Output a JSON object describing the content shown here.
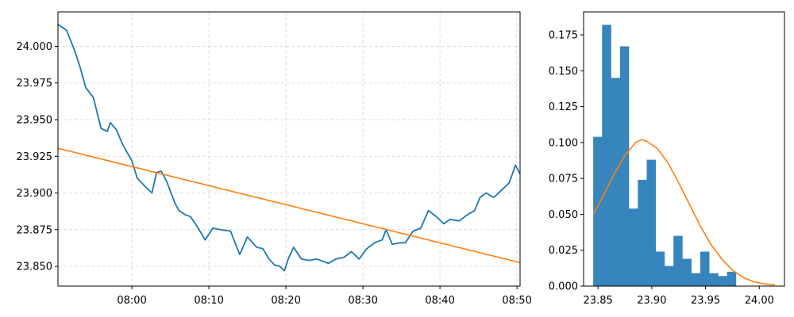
{
  "chart_data": [
    {
      "type": "line",
      "x_ticks": [
        "08:00",
        "08:10",
        "08:20",
        "08:30",
        "08:40",
        "08:50"
      ],
      "x_tick_minutes": [
        0,
        10,
        20,
        30,
        40,
        50
      ],
      "xlim_minutes": [
        -9.6,
        50.4
      ],
      "y_ticks": [
        "23.850",
        "23.875",
        "23.900",
        "23.925",
        "23.950",
        "23.975",
        "24.000"
      ],
      "y_tick_values": [
        23.85,
        23.875,
        23.9,
        23.925,
        23.95,
        23.975,
        24.0
      ],
      "ylim": [
        23.8365,
        24.0235
      ],
      "grid": true,
      "series": [
        {
          "color": "#1f77b4",
          "x_minutes": [
            -9.6,
            -8.5,
            -7.5,
            -6.8,
            -6.0,
            -5.0,
            -4.0,
            -3.2,
            -2.8,
            -2.0,
            -1.2,
            0.0,
            0.7,
            1.8,
            2.6,
            3.2,
            3.8,
            4.5,
            5.6,
            6.1,
            7.0,
            7.6,
            8.5,
            9.5,
            10.5,
            11.5,
            12.8,
            14.0,
            15.0,
            16.2,
            17.0,
            17.8,
            18.5,
            19.2,
            19.8,
            20.3,
            21.0,
            22.0,
            23.0,
            24.0,
            25.5,
            26.5,
            27.5,
            28.5,
            29.5,
            30.5,
            31.5,
            32.5,
            33.0,
            33.8,
            34.8,
            35.5,
            36.5,
            37.5,
            38.5,
            39.5,
            40.5,
            41.3,
            42.5,
            43.5,
            44.5,
            45.2,
            46.0,
            47.0,
            48.0,
            49.0,
            49.8,
            50.4
          ],
          "y": [
            24.015,
            24.011,
            23.998,
            23.987,
            23.972,
            23.965,
            23.944,
            23.942,
            23.948,
            23.943,
            23.933,
            23.922,
            23.91,
            23.904,
            23.9,
            23.914,
            23.915,
            23.908,
            23.893,
            23.888,
            23.885,
            23.884,
            23.877,
            23.868,
            23.876,
            23.875,
            23.874,
            23.858,
            23.87,
            23.863,
            23.862,
            23.855,
            23.851,
            23.85,
            23.847,
            23.855,
            23.863,
            23.855,
            23.854,
            23.855,
            23.852,
            23.855,
            23.856,
            23.86,
            23.855,
            23.862,
            23.866,
            23.868,
            23.875,
            23.865,
            23.866,
            23.866,
            23.874,
            23.876,
            23.888,
            23.884,
            23.879,
            23.882,
            23.881,
            23.885,
            23.888,
            23.897,
            23.9,
            23.897,
            23.902,
            23.907,
            23.919,
            23.913
          ]
        },
        {
          "color": "#ff7f0e",
          "x_minutes": [
            -9.6,
            50.4
          ],
          "y": [
            23.9305,
            23.8525
          ]
        }
      ]
    },
    {
      "type": "bar",
      "x_ticks": [
        "23.85",
        "23.90",
        "23.95",
        "24.00"
      ],
      "x_tick_values": [
        23.85,
        23.9,
        23.95,
        24.0
      ],
      "xlim": [
        23.8366,
        24.0234
      ],
      "y_ticks": [
        "0.000",
        "0.025",
        "0.050",
        "0.075",
        "0.100",
        "0.125",
        "0.150",
        "0.175"
      ],
      "y_tick_values": [
        0,
        0.025,
        0.05,
        0.075,
        0.1,
        0.125,
        0.15,
        0.175
      ],
      "ylim": [
        0,
        0.191
      ],
      "grid": false,
      "series": [
        {
          "color": "#3685bc",
          "bin_start": 23.8455,
          "bin_width": 0.0083,
          "values": [
            0.104,
            0.182,
            0.145,
            0.167,
            0.054,
            0.074,
            0.088,
            0.024,
            0.014,
            0.035,
            0.019,
            0.009,
            0.024,
            0.009,
            0.007,
            0.01
          ]
        },
        {
          "color": "#ff7f0e",
          "x": [
            23.8455,
            23.855,
            23.865,
            23.875,
            23.885,
            23.8905,
            23.895,
            23.905,
            23.915,
            23.925,
            23.935,
            23.945,
            23.955,
            23.965,
            23.975,
            23.985,
            23.995,
            24.005,
            24.0145
          ],
          "y": [
            0.05,
            0.063,
            0.078,
            0.091,
            0.1,
            0.102,
            0.101,
            0.096,
            0.086,
            0.072,
            0.057,
            0.042,
            0.029,
            0.019,
            0.011,
            0.006,
            0.003,
            0.0015,
            0.0008
          ]
        }
      ]
    }
  ]
}
